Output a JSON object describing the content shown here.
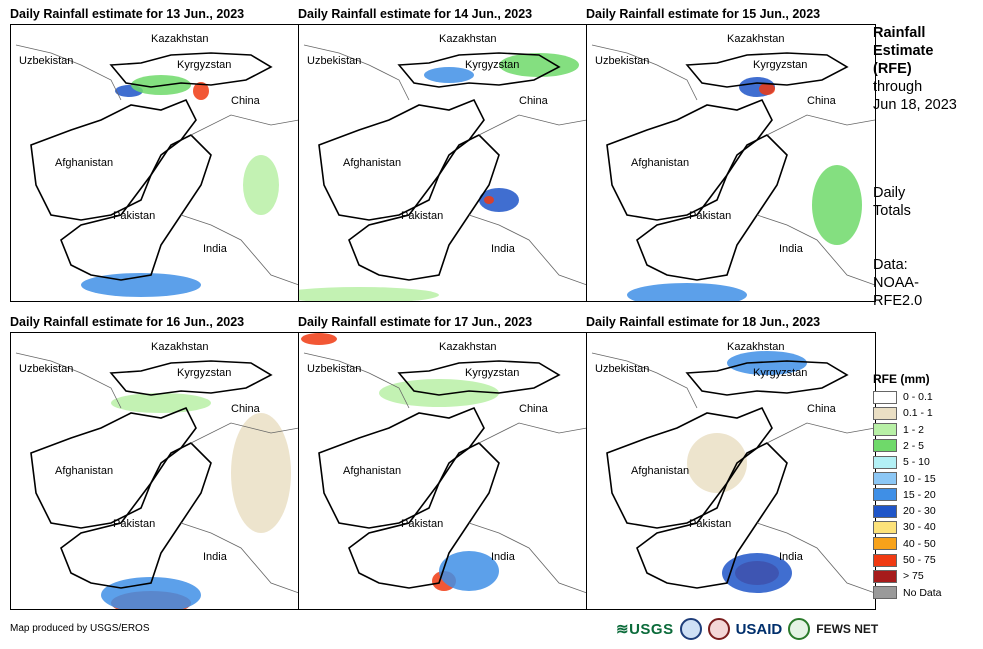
{
  "panels": [
    {
      "title": "Daily Rainfall estimate for 13 Jun., 2023",
      "labels": {
        "kazakhstan": "Kazakhstan",
        "uzbekistan": "Uzbekistan",
        "kyrgyzstan": "Kyrgyzstan",
        "china": "China",
        "afghanistan": "Afghanistan",
        "pakistan": "Pakistan",
        "india": "India"
      }
    },
    {
      "title": "Daily Rainfall estimate for 14 Jun., 2023",
      "labels": {
        "kazakhstan": "Kazakhstan",
        "uzbekistan": "Uzbekistan",
        "kyrgyzstan": "Kyrgyzstan",
        "china": "China",
        "afghanistan": "Afghanistan",
        "pakistan": "Pakistan",
        "india": "India"
      }
    },
    {
      "title": "Daily Rainfall estimate for 15 Jun., 2023",
      "labels": {
        "kazakhstan": "Kazakhstan",
        "uzbekistan": "Uzbekistan",
        "kyrgyzstan": "Kyrgyzstan",
        "china": "China",
        "afghanistan": "Afghanistan",
        "pakistan": "Pakistan",
        "india": "India"
      }
    },
    {
      "title": "Daily Rainfall estimate for 16 Jun., 2023",
      "labels": {
        "kazakhstan": "Kazakhstan",
        "uzbekistan": "Uzbekistan",
        "kyrgyzstan": "Kyrgyzstan",
        "china": "China",
        "afghanistan": "Afghanistan",
        "pakistan": "Pakistan",
        "india": "India"
      }
    },
    {
      "title": "Daily Rainfall estimate for 17 Jun., 2023",
      "labels": {
        "kazakhstan": "Kazakhstan",
        "uzbekistan": "Uzbekistan",
        "kyrgyzstan": "Kyrgyzstan",
        "china": "China",
        "afghanistan": "Afghanistan",
        "pakistan": "Pakistan",
        "india": "India"
      }
    },
    {
      "title": "Daily Rainfall estimate for 18 Jun., 2023",
      "labels": {
        "kazakhstan": "Kazakhstan",
        "uzbekistan": "Uzbekistan",
        "kyrgyzstan": "Kyrgyzstan",
        "china": "China",
        "afghanistan": "Afghanistan",
        "pakistan": "Pakistan",
        "india": "India"
      }
    }
  ],
  "side": {
    "title_line1": "Rainfall",
    "title_line2": "Estimate",
    "title_line3": "(RFE)",
    "through": "through",
    "date": "Jun 18, 2023",
    "daily": "Daily",
    "totals": "Totals",
    "data_label": "Data:",
    "data_source1": "NOAA-",
    "data_source2": "RFE2.0"
  },
  "legend": {
    "title": "RFE (mm)",
    "items": [
      {
        "label": "0 - 0.1",
        "color": "#ffffff"
      },
      {
        "label": "0.1 - 1",
        "color": "#eadfc4"
      },
      {
        "label": "1 - 2",
        "color": "#b8f0a6"
      },
      {
        "label": "2 - 5",
        "color": "#6fd96a"
      },
      {
        "label": "5 - 10",
        "color": "#b3f0f5"
      },
      {
        "label": "10 - 15",
        "color": "#8cc7f5"
      },
      {
        "label": "15 - 20",
        "color": "#3f8fe6"
      },
      {
        "label": "20 - 30",
        "color": "#1f55c8"
      },
      {
        "label": "30 - 40",
        "color": "#fce27a"
      },
      {
        "label": "40 - 50",
        "color": "#f7a21a"
      },
      {
        "label": "50 - 75",
        "color": "#f03a12"
      },
      {
        "label": "> 75",
        "color": "#a61b1b"
      },
      {
        "label": "No Data",
        "color": "#9a9a9a"
      }
    ]
  },
  "footer": {
    "credit": "Map produced by USGS/EROS",
    "usgs": "≋USGS",
    "usaid": "USAID",
    "fews": "FEWS NET"
  }
}
